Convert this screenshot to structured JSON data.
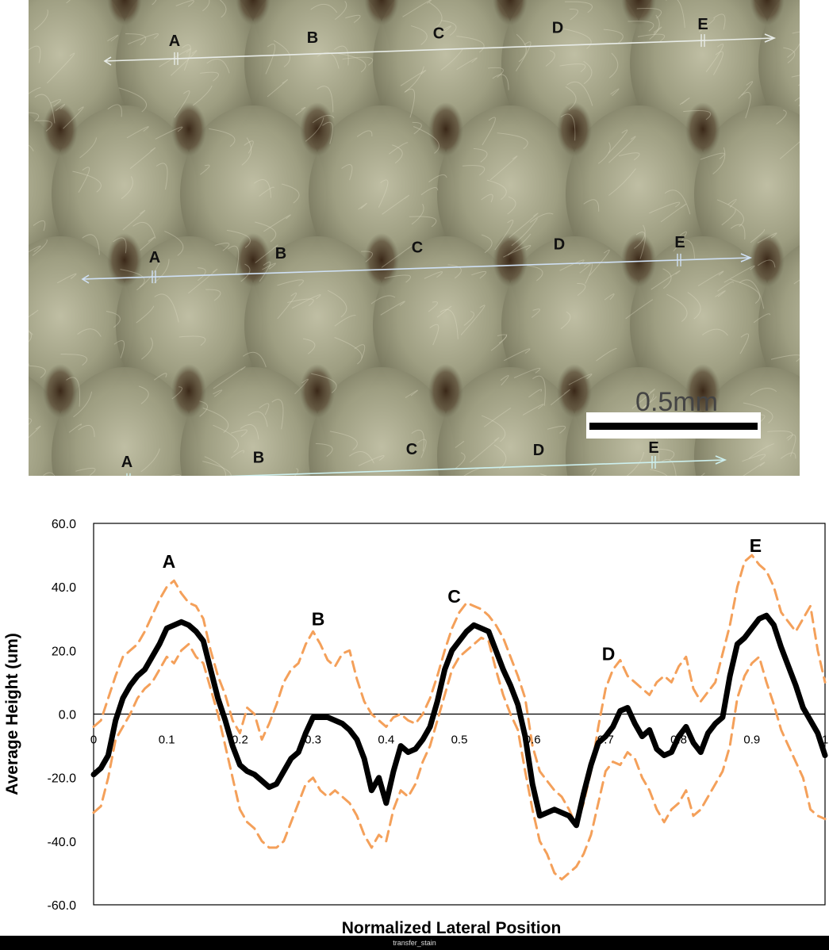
{
  "photo": {
    "scale_bar_label": "0.5mm",
    "scan_lines": [
      {
        "color": "#e8ece8",
        "labels": [
          "A",
          "B",
          "C",
          "D",
          "E"
        ]
      },
      {
        "color": "#cfe0f5",
        "labels": [
          "A",
          "B",
          "C",
          "D",
          "E"
        ]
      },
      {
        "color": "#cdf0ef",
        "labels": [
          "A",
          "B",
          "C",
          "D",
          "E"
        ]
      }
    ]
  },
  "chart_data": {
    "type": "line",
    "xlabel": "Normalized Lateral Position",
    "ylabel": "Average Height (um)",
    "xlim": [
      0,
      1
    ],
    "ylim": [
      -60,
      60
    ],
    "xticks": [
      0,
      0.1,
      0.2,
      0.3,
      0.4,
      0.5,
      0.6,
      0.7,
      0.8,
      0.9,
      1
    ],
    "xtick_labels": [
      "0",
      "0.1",
      "0.2",
      "0.3",
      "0.4",
      "0.5",
      "0.6",
      "0.7",
      "0.8",
      "0.9",
      "1"
    ],
    "yticks": [
      -60,
      -40,
      -20,
      0,
      20,
      40,
      60
    ],
    "ytick_labels": [
      "-60.0",
      "-40.0",
      "-20.0",
      "0.0",
      "20.0",
      "40.0",
      "60.0"
    ],
    "grid": false,
    "annotations": [
      {
        "text": "A",
        "x": 0.103,
        "y": 46
      },
      {
        "text": "B",
        "x": 0.307,
        "y": 28
      },
      {
        "text": "C",
        "x": 0.493,
        "y": 35
      },
      {
        "text": "D",
        "x": 0.704,
        "y": 17
      },
      {
        "text": "E",
        "x": 0.905,
        "y": 51
      }
    ],
    "series": [
      {
        "style": "mean",
        "color": "#000000",
        "x": [
          0,
          0.01,
          0.02,
          0.03,
          0.04,
          0.05,
          0.06,
          0.07,
          0.08,
          0.09,
          0.1,
          0.11,
          0.12,
          0.13,
          0.14,
          0.15,
          0.16,
          0.17,
          0.18,
          0.19,
          0.2,
          0.21,
          0.22,
          0.23,
          0.24,
          0.25,
          0.26,
          0.27,
          0.28,
          0.29,
          0.3,
          0.31,
          0.32,
          0.33,
          0.34,
          0.35,
          0.36,
          0.37,
          0.38,
          0.39,
          0.4,
          0.41,
          0.42,
          0.43,
          0.44,
          0.45,
          0.46,
          0.47,
          0.48,
          0.49,
          0.5,
          0.51,
          0.52,
          0.53,
          0.54,
          0.55,
          0.56,
          0.57,
          0.58,
          0.59,
          0.6,
          0.61,
          0.62,
          0.63,
          0.64,
          0.65,
          0.66,
          0.67,
          0.68,
          0.69,
          0.7,
          0.71,
          0.72,
          0.73,
          0.74,
          0.75,
          0.76,
          0.77,
          0.78,
          0.79,
          0.8,
          0.81,
          0.82,
          0.83,
          0.84,
          0.85,
          0.86,
          0.87,
          0.88,
          0.89,
          0.9,
          0.91,
          0.92,
          0.93,
          0.94,
          0.95,
          0.96,
          0.97,
          0.98,
          0.99,
          1
        ],
        "y": [
          -19,
          -17,
          -13,
          -2,
          5,
          9,
          12,
          14,
          18,
          22,
          27,
          28,
          29,
          28,
          26,
          23,
          14,
          5,
          -2,
          -10,
          -16,
          -18,
          -19,
          -21,
          -23,
          -22,
          -18,
          -14,
          -12,
          -6,
          -1,
          -1,
          -1,
          -2,
          -3,
          -5,
          -8,
          -14,
          -24,
          -20,
          -28,
          -18,
          -10,
          -12,
          -11,
          -8,
          -4,
          4,
          14,
          20,
          23,
          26,
          28,
          27,
          26,
          20,
          14,
          9,
          3,
          -7,
          -22,
          -32,
          -31,
          -30,
          -31,
          -32,
          -35,
          -25,
          -16,
          -9,
          -7,
          -4,
          1,
          2,
          -3,
          -7,
          -5,
          -11,
          -13,
          -12,
          -7,
          -4,
          -9,
          -12,
          -6,
          -3,
          -1,
          12,
          22,
          24,
          27,
          30,
          31,
          28,
          21,
          15,
          9,
          2,
          -2,
          -6,
          -13
        ]
      },
      {
        "style": "upper-bound",
        "color": "#f4a05a",
        "x": [
          0,
          0.01,
          0.02,
          0.03,
          0.04,
          0.05,
          0.06,
          0.07,
          0.08,
          0.09,
          0.1,
          0.11,
          0.12,
          0.13,
          0.14,
          0.15,
          0.16,
          0.17,
          0.18,
          0.19,
          0.2,
          0.21,
          0.22,
          0.23,
          0.24,
          0.25,
          0.26,
          0.27,
          0.28,
          0.29,
          0.3,
          0.31,
          0.32,
          0.33,
          0.34,
          0.35,
          0.36,
          0.37,
          0.38,
          0.39,
          0.4,
          0.41,
          0.42,
          0.43,
          0.44,
          0.45,
          0.46,
          0.47,
          0.48,
          0.49,
          0.5,
          0.51,
          0.52,
          0.53,
          0.54,
          0.55,
          0.56,
          0.57,
          0.58,
          0.59,
          0.6,
          0.61,
          0.62,
          0.63,
          0.64,
          0.65,
          0.66,
          0.67,
          0.68,
          0.69,
          0.7,
          0.71,
          0.72,
          0.73,
          0.74,
          0.75,
          0.76,
          0.77,
          0.78,
          0.79,
          0.8,
          0.81,
          0.82,
          0.83,
          0.84,
          0.85,
          0.86,
          0.87,
          0.88,
          0.89,
          0.9,
          0.91,
          0.92,
          0.93,
          0.94,
          0.95,
          0.96,
          0.97,
          0.98,
          0.99,
          1
        ],
        "y": [
          -4,
          -2,
          5,
          12,
          18,
          20,
          22,
          26,
          31,
          36,
          40,
          42,
          38,
          35,
          34,
          30,
          20,
          12,
          6,
          -2,
          -6,
          2,
          0,
          -8,
          -3,
          3,
          10,
          14,
          16,
          22,
          26,
          22,
          17,
          15,
          19,
          20,
          11,
          4,
          0,
          -2,
          -4,
          -1,
          0,
          -2,
          -3,
          0,
          5,
          12,
          20,
          27,
          32,
          35,
          34,
          33,
          31,
          28,
          24,
          18,
          12,
          5,
          -10,
          -18,
          -21,
          -24,
          -26,
          -30,
          -35,
          -28,
          -18,
          -4,
          8,
          14,
          17,
          12,
          10,
          8,
          6,
          10,
          12,
          10,
          15,
          18,
          8,
          4,
          7,
          10,
          19,
          28,
          40,
          48,
          50,
          47,
          45,
          40,
          32,
          29,
          26,
          30,
          34,
          20,
          10
        ]
      },
      {
        "style": "lower-bound",
        "color": "#f4a05a",
        "x": [
          0,
          0.01,
          0.02,
          0.03,
          0.04,
          0.05,
          0.06,
          0.07,
          0.08,
          0.09,
          0.1,
          0.11,
          0.12,
          0.13,
          0.14,
          0.15,
          0.16,
          0.17,
          0.18,
          0.19,
          0.2,
          0.21,
          0.22,
          0.23,
          0.24,
          0.25,
          0.26,
          0.27,
          0.28,
          0.29,
          0.3,
          0.31,
          0.32,
          0.33,
          0.34,
          0.35,
          0.36,
          0.37,
          0.38,
          0.39,
          0.4,
          0.41,
          0.42,
          0.43,
          0.44,
          0.45,
          0.46,
          0.47,
          0.48,
          0.49,
          0.5,
          0.51,
          0.52,
          0.53,
          0.54,
          0.55,
          0.56,
          0.57,
          0.58,
          0.59,
          0.6,
          0.61,
          0.62,
          0.63,
          0.64,
          0.65,
          0.66,
          0.67,
          0.68,
          0.69,
          0.7,
          0.71,
          0.72,
          0.73,
          0.74,
          0.75,
          0.76,
          0.77,
          0.78,
          0.79,
          0.8,
          0.81,
          0.82,
          0.83,
          0.84,
          0.85,
          0.86,
          0.87,
          0.88,
          0.89,
          0.9,
          0.91,
          0.92,
          0.93,
          0.94,
          0.95,
          0.96,
          0.97,
          0.98,
          0.99,
          1
        ],
        "y": [
          -31,
          -29,
          -20,
          -8,
          -4,
          0,
          5,
          8,
          10,
          14,
          18,
          16,
          20,
          22,
          18,
          16,
          8,
          0,
          -10,
          -20,
          -30,
          -34,
          -36,
          -40,
          -42,
          -42,
          -40,
          -34,
          -28,
          -22,
          -20,
          -24,
          -26,
          -24,
          -26,
          -28,
          -32,
          -38,
          -42,
          -38,
          -40,
          -30,
          -24,
          -26,
          -22,
          -15,
          -10,
          -2,
          6,
          14,
          18,
          20,
          22,
          24,
          23,
          14,
          6,
          0,
          -5,
          -18,
          -30,
          -40,
          -44,
          -50,
          -52,
          -50,
          -48,
          -44,
          -38,
          -28,
          -18,
          -15,
          -16,
          -12,
          -14,
          -20,
          -24,
          -30,
          -34,
          -30,
          -28,
          -24,
          -32,
          -30,
          -26,
          -22,
          -18,
          -10,
          5,
          12,
          16,
          18,
          10,
          3,
          -5,
          -10,
          -15,
          -20,
          -30,
          -32,
          -33
        ]
      }
    ]
  },
  "footer": {
    "caption": "transfer_stain"
  }
}
